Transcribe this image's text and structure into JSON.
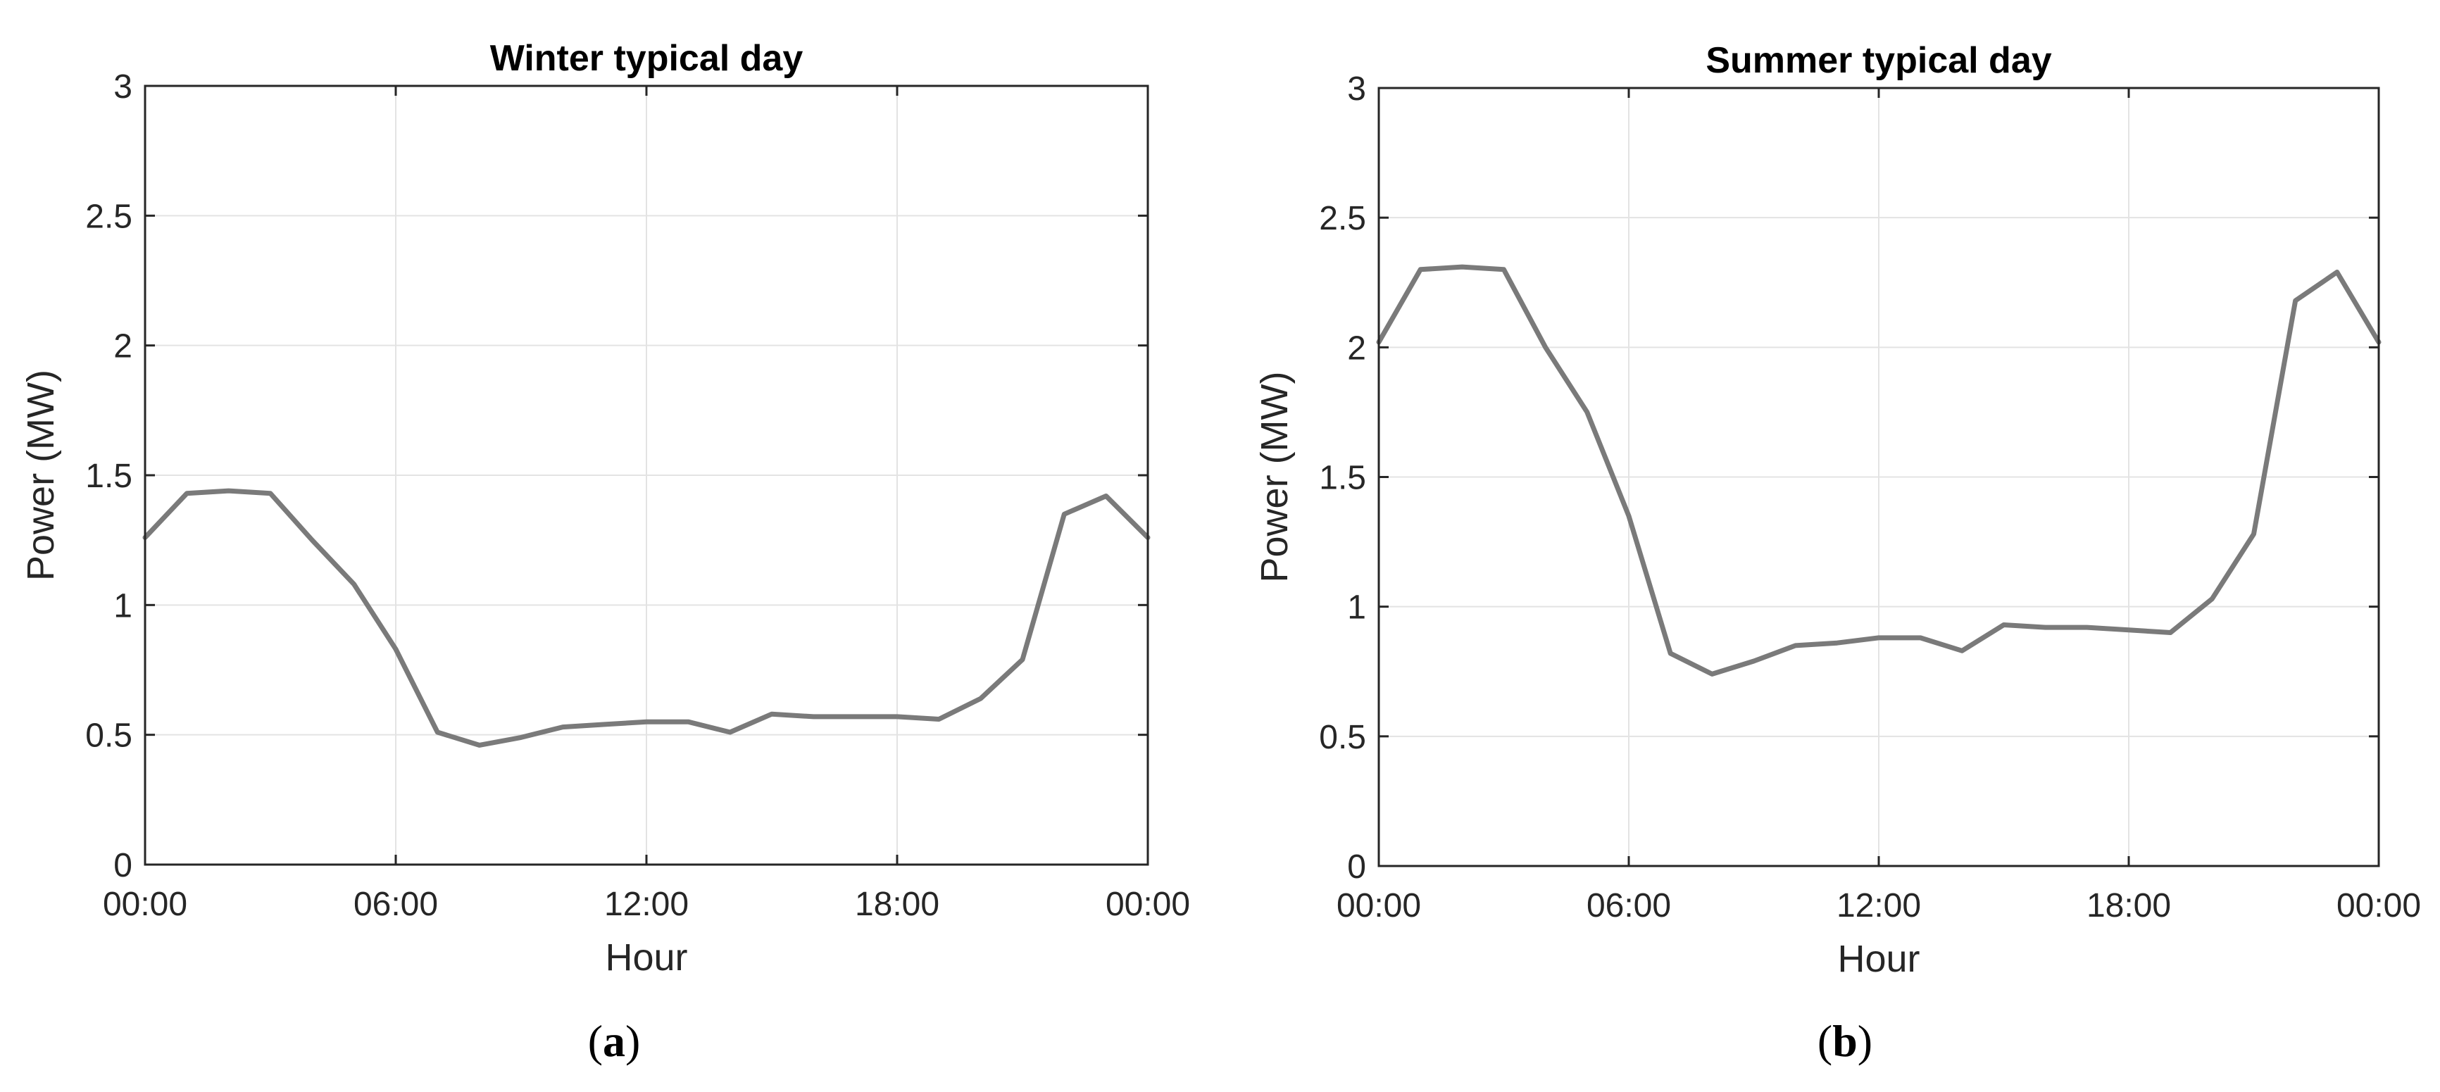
{
  "chart_data": [
    {
      "type": "line",
      "panel_label": "a",
      "title": "Winter typical day",
      "xlabel": "Hour",
      "ylabel": "Power (MW)",
      "xlim": [
        0,
        24
      ],
      "ylim": [
        0,
        3
      ],
      "x_ticks": [
        0,
        6,
        12,
        18,
        24
      ],
      "x_tick_labels": [
        "00:00",
        "06:00",
        "12:00",
        "18:00",
        "00:00"
      ],
      "y_ticks": [
        0,
        0.5,
        1,
        1.5,
        2,
        2.5,
        3
      ],
      "y_tick_labels": [
        "0",
        "0.5",
        "1",
        "1.5",
        "2",
        "2.5",
        "3"
      ],
      "grid": true,
      "series": [
        {
          "color": "#7a7a7a",
          "x": [
            0,
            1,
            2,
            3,
            4,
            5,
            6,
            7,
            8,
            9,
            10,
            11,
            12,
            13,
            14,
            15,
            16,
            17,
            18,
            19,
            20,
            21,
            22,
            23,
            24
          ],
          "values": [
            1.26,
            1.43,
            1.44,
            1.43,
            1.25,
            1.08,
            0.83,
            0.51,
            0.46,
            0.49,
            0.53,
            0.54,
            0.55,
            0.55,
            0.51,
            0.58,
            0.57,
            0.57,
            0.57,
            0.56,
            0.64,
            0.79,
            1.35,
            1.42,
            1.26
          ]
        }
      ]
    },
    {
      "type": "line",
      "panel_label": "b",
      "title": "Summer typical day",
      "xlabel": "Hour",
      "ylabel": "Power (MW)",
      "xlim": [
        0,
        24
      ],
      "ylim": [
        0,
        3
      ],
      "x_ticks": [
        0,
        6,
        12,
        18,
        24
      ],
      "x_tick_labels": [
        "00:00",
        "06:00",
        "12:00",
        "18:00",
        "00:00"
      ],
      "y_ticks": [
        0,
        0.5,
        1,
        1.5,
        2,
        2.5,
        3
      ],
      "y_tick_labels": [
        "0",
        "0.5",
        "1",
        "1.5",
        "2",
        "2.5",
        "3"
      ],
      "grid": true,
      "series": [
        {
          "color": "#7a7a7a",
          "x": [
            0,
            1,
            2,
            3,
            4,
            5,
            6,
            7,
            8,
            9,
            10,
            11,
            12,
            13,
            14,
            15,
            16,
            17,
            18,
            19,
            20,
            21,
            22,
            23,
            24
          ],
          "values": [
            2.02,
            2.3,
            2.31,
            2.3,
            2.0,
            1.75,
            1.35,
            0.82,
            0.74,
            0.79,
            0.85,
            0.86,
            0.88,
            0.88,
            0.83,
            0.93,
            0.92,
            0.92,
            0.91,
            0.9,
            1.03,
            1.28,
            2.18,
            2.29,
            2.02
          ]
        }
      ]
    }
  ]
}
